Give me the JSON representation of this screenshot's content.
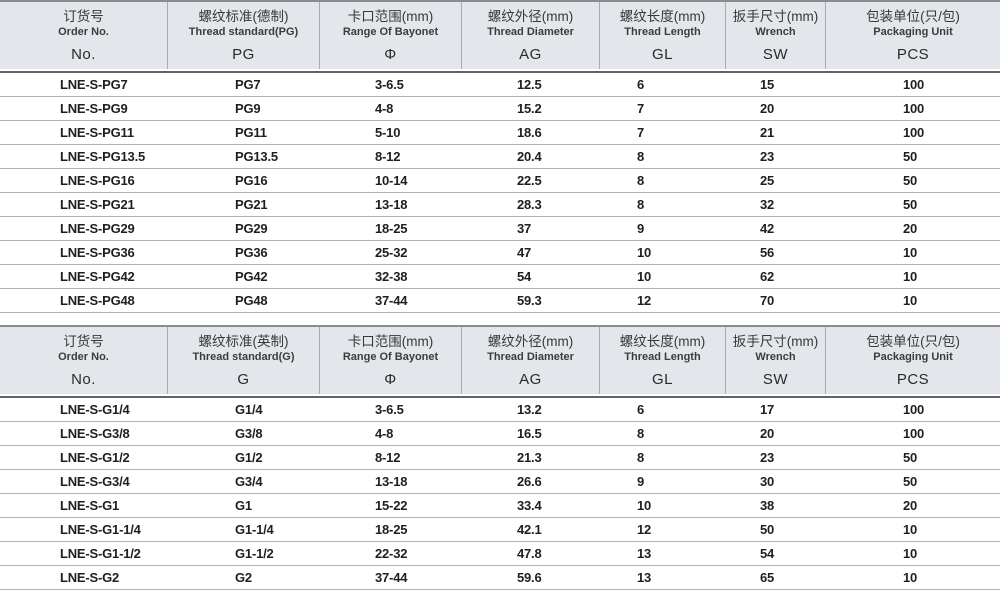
{
  "tables": [
    {
      "name": "pg-thread-table",
      "columns": [
        {
          "cn": "订货号",
          "en": "Order No.",
          "sym": "No."
        },
        {
          "cn": "螺纹标准(德制)",
          "en": "Thread standard(PG)",
          "sym": "PG"
        },
        {
          "cn": "卡口范围(mm)",
          "en": "Range Of Bayonet",
          "sym": "Φ"
        },
        {
          "cn": "螺纹外径(mm)",
          "en": "Thread Diameter",
          "sym": "AG"
        },
        {
          "cn": "螺纹长度(mm)",
          "en": "Thread Length",
          "sym": "GL"
        },
        {
          "cn": "扳手尺寸(mm)",
          "en": "Wrench",
          "sym": "SW"
        },
        {
          "cn": "包装单位(只/包)",
          "en": "Packaging Unit",
          "sym": "PCS"
        }
      ],
      "rows": [
        [
          "LNE-S-PG7",
          "PG7",
          "3-6.5",
          "12.5",
          "6",
          "15",
          "100"
        ],
        [
          "LNE-S-PG9",
          "PG9",
          "4-8",
          "15.2",
          "7",
          "20",
          "100"
        ],
        [
          "LNE-S-PG11",
          "PG11",
          "5-10",
          "18.6",
          "7",
          "21",
          "100"
        ],
        [
          "LNE-S-PG13.5",
          "PG13.5",
          "8-12",
          "20.4",
          "8",
          "23",
          "50"
        ],
        [
          "LNE-S-PG16",
          "PG16",
          "10-14",
          "22.5",
          "8",
          "25",
          "50"
        ],
        [
          "LNE-S-PG21",
          "PG21",
          "13-18",
          "28.3",
          "8",
          "32",
          "50"
        ],
        [
          "LNE-S-PG29",
          "PG29",
          "18-25",
          "37",
          "9",
          "42",
          "20"
        ],
        [
          "LNE-S-PG36",
          "PG36",
          "25-32",
          "47",
          "10",
          "56",
          "10"
        ],
        [
          "LNE-S-PG42",
          "PG42",
          "32-38",
          "54",
          "10",
          "62",
          "10"
        ],
        [
          "LNE-S-PG48",
          "PG48",
          "37-44",
          "59.3",
          "12",
          "70",
          "10"
        ]
      ]
    },
    {
      "name": "g-thread-table",
      "columns": [
        {
          "cn": "订货号",
          "en": "Order No.",
          "sym": "No."
        },
        {
          "cn": "螺纹标准(英制)",
          "en": "Thread standard(G)",
          "sym": "G"
        },
        {
          "cn": "卡口范围(mm)",
          "en": "Range Of Bayonet",
          "sym": "Φ"
        },
        {
          "cn": "螺纹外径(mm)",
          "en": "Thread Diameter",
          "sym": "AG"
        },
        {
          "cn": "螺纹长度(mm)",
          "en": "Thread Length",
          "sym": "GL"
        },
        {
          "cn": "扳手尺寸(mm)",
          "en": "Wrench",
          "sym": "SW"
        },
        {
          "cn": "包装单位(只/包)",
          "en": "Packaging Unit",
          "sym": "PCS"
        }
      ],
      "rows": [
        [
          "LNE-S-G1/4",
          "G1/4",
          "3-6.5",
          "13.2",
          "6",
          "17",
          "100"
        ],
        [
          "LNE-S-G3/8",
          "G3/8",
          "4-8",
          "16.5",
          "8",
          "20",
          "100"
        ],
        [
          "LNE-S-G1/2",
          "G1/2",
          "8-12",
          "21.3",
          "8",
          "23",
          "50"
        ],
        [
          "LNE-S-G3/4",
          "G3/4",
          "13-18",
          "26.6",
          "9",
          "30",
          "50"
        ],
        [
          "LNE-S-G1",
          "G1",
          "15-22",
          "33.4",
          "10",
          "38",
          "20"
        ],
        [
          "LNE-S-G1-1/4",
          "G1-1/4",
          "18-25",
          "42.1",
          "12",
          "50",
          "10"
        ],
        [
          "LNE-S-G1-1/2",
          "G1-1/2",
          "22-32",
          "47.8",
          "13",
          "54",
          "10"
        ],
        [
          "LNE-S-G2",
          "G2",
          "37-44",
          "59.6",
          "13",
          "65",
          "10"
        ]
      ]
    }
  ],
  "colors": {
    "header_bg": "#e3e6eb",
    "header_rule_dark": "#5f6368",
    "row_separator": "#b0b3b6",
    "body_text": "#1f1f1f"
  }
}
